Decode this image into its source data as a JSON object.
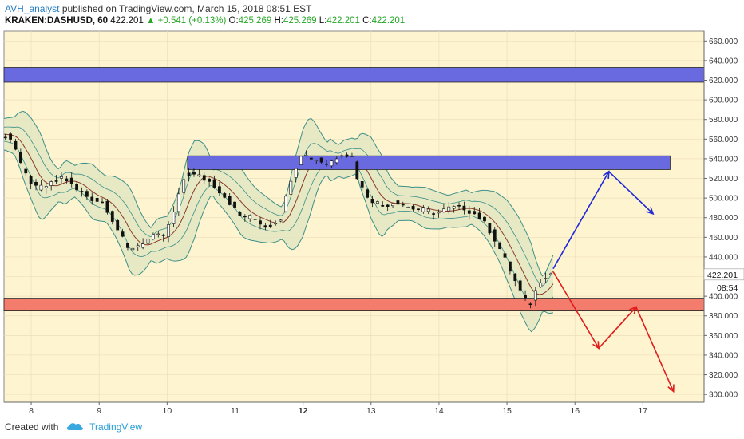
{
  "header": {
    "author": "AVH_analyst",
    "published_text": "published on TradingView.com, March 15, 2018 08:51 EST"
  },
  "symbol_bar": {
    "symbol": "KRAKEN:DASHUSD, 60",
    "last": "422.201",
    "change": "+0.541 (+0.13%)",
    "o_label": "O:",
    "o_value": "425.269",
    "h_label": "H:",
    "h_value": "425.269",
    "l_label": "L:",
    "l_value": "422.201",
    "c_label": "C:",
    "c_value": "422.201"
  },
  "price_badge": "422.201",
  "countdown": "08:54",
  "footer": {
    "created_with": "Created with",
    "brand": "TradingView"
  },
  "colors": {
    "background": "#fff4d0",
    "resistance_zone": "#6a6ae0",
    "support_zone": "#f47c6c",
    "bullish_arrow": "#1f2ad6",
    "bearish_arrow": "#e01c1c",
    "band_fill": "#dde5bf",
    "band_line": "#3c8f8a",
    "basis_line": "#8b3a2a"
  },
  "chart_data": {
    "type": "candlestick",
    "y_ticks": [
      "660.000",
      "640.000",
      "620.000",
      "600.000",
      "580.000",
      "560.000",
      "540.000",
      "520.000",
      "500.000",
      "480.000",
      "460.000",
      "440.000",
      "420.000",
      "400.000",
      "380.000",
      "360.000",
      "340.000",
      "320.000",
      "300.000"
    ],
    "y_tick_values": [
      660,
      640,
      620,
      600,
      580,
      560,
      540,
      520,
      500,
      480,
      460,
      440,
      420,
      400,
      380,
      360,
      340,
      320,
      300
    ],
    "ylim": [
      292,
      670
    ],
    "x_ticks": [
      "8",
      "9",
      "10",
      "11",
      "12",
      "13",
      "14",
      "15",
      "16",
      "17"
    ],
    "x_tick_days": [
      8,
      9,
      10,
      11,
      12,
      13,
      14,
      15,
      16,
      17
    ],
    "x_bold_tick": "12",
    "xlim": [
      7.6,
      17.9
    ],
    "zones": [
      {
        "type": "resistance",
        "from_day": 7.6,
        "to_day": 17.9,
        "low": 618,
        "high": 633
      },
      {
        "type": "resistance",
        "from_day": 10.3,
        "to_day": 17.4,
        "low": 529,
        "high": 543
      },
      {
        "type": "support",
        "from_day": 7.6,
        "to_day": 17.9,
        "low": 385,
        "high": 398
      }
    ],
    "bullish_projection": [
      [
        15.68,
        428
      ],
      [
        16.5,
        527
      ],
      [
        17.15,
        484
      ]
    ],
    "bearish_projection": [
      [
        15.68,
        425
      ],
      [
        16.35,
        347
      ],
      [
        16.9,
        389
      ],
      [
        17.45,
        303
      ]
    ],
    "price_path": [
      [
        7.6,
        565
      ],
      [
        7.75,
        560
      ],
      [
        7.9,
        528
      ],
      [
        8.1,
        510
      ],
      [
        8.3,
        513
      ],
      [
        8.5,
        522
      ],
      [
        8.7,
        508
      ],
      [
        8.9,
        500
      ],
      [
        9.1,
        495
      ],
      [
        9.3,
        468
      ],
      [
        9.45,
        448
      ],
      [
        9.6,
        452
      ],
      [
        9.8,
        460
      ],
      [
        10.0,
        462
      ],
      [
        10.15,
        490
      ],
      [
        10.3,
        525
      ],
      [
        10.5,
        522
      ],
      [
        10.7,
        515
      ],
      [
        10.9,
        500
      ],
      [
        11.1,
        482
      ],
      [
        11.3,
        480
      ],
      [
        11.5,
        470
      ],
      [
        11.7,
        480
      ],
      [
        11.85,
        520
      ],
      [
        12.0,
        545
      ],
      [
        12.2,
        540
      ],
      [
        12.4,
        535
      ],
      [
        12.6,
        546
      ],
      [
        12.75,
        542
      ],
      [
        12.85,
        515
      ],
      [
        13.0,
        500
      ],
      [
        13.2,
        492
      ],
      [
        13.4,
        497
      ],
      [
        13.6,
        490
      ],
      [
        13.8,
        488
      ],
      [
        14.0,
        485
      ],
      [
        14.2,
        490
      ],
      [
        14.4,
        490
      ],
      [
        14.6,
        482
      ],
      [
        14.75,
        470
      ],
      [
        14.9,
        452
      ],
      [
        15.05,
        430
      ],
      [
        15.2,
        408
      ],
      [
        15.35,
        390
      ],
      [
        15.45,
        405
      ],
      [
        15.55,
        420
      ],
      [
        15.68,
        423
      ]
    ],
    "last_price": 422.201
  }
}
